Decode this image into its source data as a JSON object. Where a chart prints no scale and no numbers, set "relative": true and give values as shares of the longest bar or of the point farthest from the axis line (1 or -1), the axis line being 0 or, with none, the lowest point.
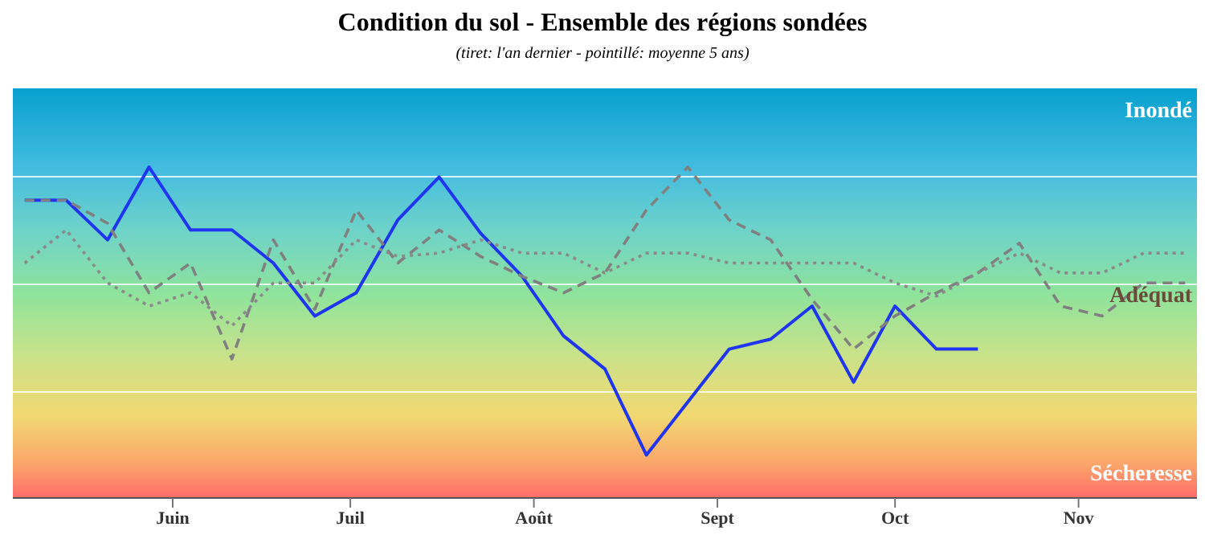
{
  "chart_data": {
    "type": "line",
    "title": "Condition du sol - Ensemble des régions sondées",
    "subtitle": "(tiret: l'an dernier - pointillé: moyenne 5 ans)",
    "relative": true,
    "grid": "y",
    "legend": false,
    "marker": "none",
    "annotations": [
      "Inondé",
      "Adéquat",
      "Sécheresse"
    ],
    "x": [
      "--05-07",
      "--05-14",
      "--05-21",
      "--05-28",
      "--06-04",
      "--06-11",
      "--06-18",
      "--06-25",
      "--07-02",
      "--07-09",
      "--07-16",
      "--07-23",
      "--07-30",
      "--08-06",
      "--08-13",
      "--08-20",
      "--08-27",
      "--09-03",
      "--09-10",
      "--09-17",
      "--09-24",
      "--10-01",
      "--10-08",
      "--10-15",
      "--10-22",
      "--10-29",
      "--11-05",
      "--11-12",
      "--11-19"
    ],
    "xlim": [
      "--05-05",
      "--11-21"
    ],
    "xticks": [
      {
        "value": "--06-01",
        "label": "Juin"
      },
      {
        "value": "--07-01",
        "label": "Juil"
      },
      {
        "value": "--08-01",
        "label": "Août"
      },
      {
        "value": "--09-01",
        "label": "Sept"
      },
      {
        "value": "--10-01",
        "label": "Oct"
      },
      {
        "value": "--11-01",
        "label": "Nov"
      }
    ],
    "series": [
      {
        "color": "#1f35f0",
        "line_style": "solid",
        "values": [
          0.9,
          0.9,
          0.78,
          1.0,
          0.81,
          0.81,
          0.71,
          0.55,
          0.62,
          0.84,
          0.97,
          0.8,
          0.67,
          0.49,
          0.39,
          0.13,
          0.29,
          0.45,
          0.48,
          0.58,
          0.35,
          0.58,
          0.45,
          0.45,
          null,
          null,
          null,
          null,
          null
        ]
      },
      {
        "color": "#808080",
        "line_style": "dashed",
        "values": [
          0.9,
          0.9,
          0.83,
          0.62,
          0.71,
          0.42,
          0.78,
          0.57,
          0.87,
          0.71,
          0.81,
          0.73,
          0.67,
          0.62,
          0.68,
          0.87,
          1.0,
          0.84,
          0.78,
          0.6,
          0.45,
          0.55,
          0.62,
          0.68,
          0.77,
          0.58,
          0.55,
          0.65,
          0.65
        ]
      },
      {
        "color": "#8a8a8a",
        "line_style": "dotted",
        "values": [
          0.71,
          0.81,
          0.65,
          0.58,
          0.62,
          0.52,
          0.65,
          0.65,
          0.78,
          0.73,
          0.74,
          0.78,
          0.74,
          0.74,
          0.68,
          0.74,
          0.74,
          0.71,
          0.71,
          0.71,
          0.71,
          0.65,
          0.61,
          0.68,
          0.74,
          0.68,
          0.68,
          0.74,
          0.74
        ]
      }
    ]
  }
}
